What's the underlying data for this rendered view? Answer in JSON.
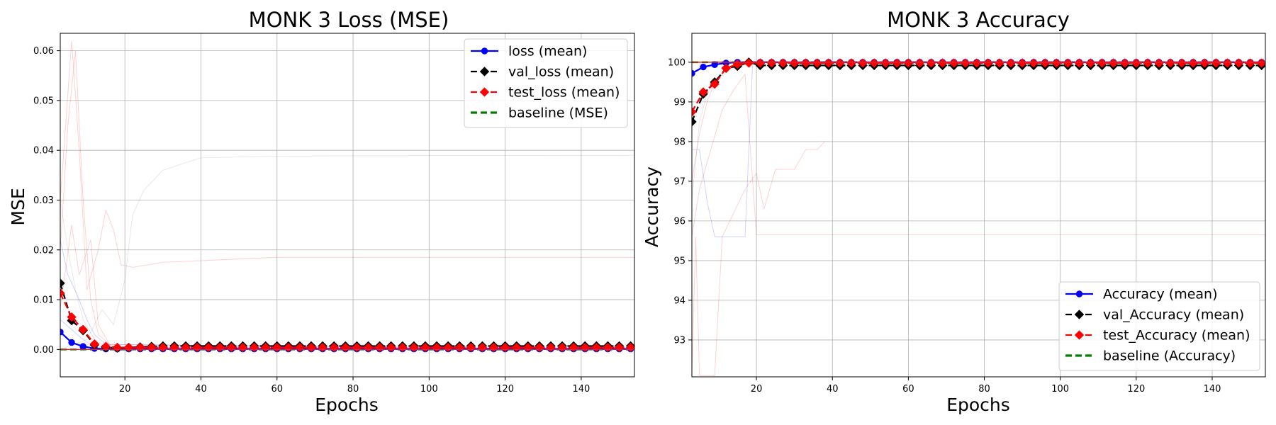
{
  "chart_data": [
    {
      "type": "line",
      "title": "MONK 3 Loss (MSE)",
      "xlabel": "Epochs",
      "ylabel": "MSE",
      "xlim": [
        3,
        154
      ],
      "ylim": [
        -0.0055,
        0.0635
      ],
      "x_ticks": [
        20,
        40,
        60,
        80,
        100,
        120,
        140
      ],
      "x_tick_labels": [
        "20",
        "40",
        "60",
        "80",
        "100",
        "120",
        "140"
      ],
      "y_ticks": [
        0.0,
        0.01,
        0.02,
        0.03,
        0.04,
        0.05,
        0.06
      ],
      "y_tick_labels": [
        "0.00",
        "0.01",
        "0.02",
        "0.03",
        "0.04",
        "0.05",
        "0.06"
      ],
      "grid": true,
      "legend_position": "top-right",
      "series": [
        {
          "name": "loss (mean)",
          "color": "#0000ff",
          "dash": "solid",
          "marker": "circle",
          "x": [
            3,
            6,
            9,
            12,
            15,
            18,
            21,
            24,
            27,
            30,
            40,
            60,
            80,
            100,
            120,
            140,
            154
          ],
          "y": [
            0.0035,
            0.0014,
            0.0006,
            0.0002,
            0.0001,
            0.0001,
            0.0001,
            0.0001,
            0.0001,
            0.0001,
            0.0001,
            0.0001,
            0.0001,
            0.0001,
            0.0001,
            0.0001,
            0.0001
          ]
        },
        {
          "name": "val_loss (mean)",
          "color": "#000000",
          "dash": "dashed",
          "marker": "diamond",
          "x": [
            3,
            6,
            9,
            12,
            15,
            18,
            21,
            24,
            27,
            30,
            40,
            60,
            80,
            100,
            120,
            140,
            154
          ],
          "y": [
            0.0133,
            0.0058,
            0.0038,
            0.0009,
            0.0004,
            0.0003,
            0.0004,
            0.0005,
            0.0006,
            0.0007,
            0.0007,
            0.0007,
            0.0007,
            0.0007,
            0.0007,
            0.0007,
            0.0007
          ]
        },
        {
          "name": "test_loss (mean)",
          "color": "#ff0000",
          "dash": "dashed",
          "marker": "square",
          "x": [
            3,
            6,
            9,
            12,
            15,
            18,
            21,
            24,
            27,
            30,
            40,
            60,
            80,
            100,
            120,
            140,
            154
          ],
          "y": [
            0.0113,
            0.0065,
            0.004,
            0.0011,
            0.0006,
            0.0004,
            0.0004,
            0.0004,
            0.0004,
            0.0004,
            0.0004,
            0.0004,
            0.0004,
            0.0004,
            0.0004,
            0.0004,
            0.0004
          ]
        },
        {
          "name": "baseline (MSE)",
          "color": "#007f00",
          "dash": "dashed",
          "marker": "none",
          "x": [
            3,
            154
          ],
          "y": [
            0.0,
            0.0
          ]
        }
      ],
      "background_runs": [
        {
          "color": "#808080",
          "x": [
            3,
            10,
            14,
            17,
            20,
            22,
            25,
            30,
            40,
            60,
            80,
            154
          ],
          "y": [
            0.0,
            0.002,
            0.008,
            0.005,
            0.014,
            0.027,
            0.032,
            0.036,
            0.0385,
            0.0388,
            0.0389,
            0.039
          ]
        },
        {
          "color": "#ff0000",
          "x": [
            3,
            6,
            8,
            10,
            13,
            15,
            17,
            19,
            22,
            30,
            60,
            154
          ],
          "y": [
            0.03,
            0.062,
            0.04,
            0.012,
            0.02,
            0.028,
            0.024,
            0.017,
            0.0165,
            0.0175,
            0.0185,
            0.0185
          ]
        },
        {
          "color": "#ff0000",
          "x": [
            3,
            5,
            7,
            9,
            11,
            13,
            16,
            20,
            154
          ],
          "y": [
            0.02,
            0.045,
            0.06,
            0.03,
            0.01,
            0.003,
            0.001,
            0.0,
            0.0
          ]
        },
        {
          "color": "#ff0000",
          "x": [
            3,
            6,
            8,
            11,
            13,
            16,
            154
          ],
          "y": [
            0.008,
            0.025,
            0.015,
            0.022,
            0.005,
            0.001,
            0.0
          ]
        },
        {
          "color": "#0000ff",
          "x": [
            3,
            5,
            8,
            10,
            12,
            15,
            154
          ],
          "y": [
            0.022,
            0.015,
            0.01,
            0.006,
            0.003,
            0.001,
            0.0
          ]
        },
        {
          "color": "#0000ff",
          "x": [
            3,
            6,
            9,
            12,
            154
          ],
          "y": [
            0.006,
            0.004,
            0.002,
            0.0005,
            0.0
          ]
        },
        {
          "color": "#808080",
          "x": [
            3,
            5,
            7,
            9,
            12,
            15,
            154
          ],
          "y": [
            0.03,
            0.02,
            0.012,
            0.006,
            0.002,
            0.0005,
            0.0
          ]
        }
      ]
    },
    {
      "type": "line",
      "title": "MONK 3 Accuracy",
      "xlabel": "Epochs",
      "ylabel": "Accuracy",
      "xlim": [
        3,
        154
      ],
      "ylim": [
        92.07,
        100.73
      ],
      "x_ticks": [
        20,
        40,
        60,
        80,
        100,
        120,
        140
      ],
      "x_tick_labels": [
        "20",
        "40",
        "60",
        "80",
        "100",
        "120",
        "140"
      ],
      "y_ticks": [
        93,
        94,
        95,
        96,
        97,
        98,
        99,
        100
      ],
      "y_tick_labels": [
        "93",
        "94",
        "95",
        "96",
        "97",
        "98",
        "99",
        "100"
      ],
      "grid": true,
      "legend_position": "bottom-right",
      "series": [
        {
          "name": "Accuracy (mean)",
          "color": "#0000ff",
          "dash": "solid",
          "marker": "circle",
          "x": [
            3,
            6,
            9,
            12,
            15,
            18,
            21,
            24,
            30,
            40,
            60,
            80,
            100,
            120,
            140,
            154
          ],
          "y": [
            99.72,
            99.88,
            99.94,
            99.98,
            100.0,
            100.0,
            100.0,
            100.0,
            100.0,
            100.0,
            100.0,
            100.0,
            100.0,
            100.0,
            100.0,
            100.0
          ]
        },
        {
          "name": "val_Accuracy (mean)",
          "color": "#000000",
          "dash": "dashed",
          "marker": "diamond",
          "x": [
            3,
            6,
            9,
            12,
            15,
            18,
            21,
            24,
            30,
            40,
            60,
            80,
            100,
            120,
            140,
            154
          ],
          "y": [
            98.5,
            99.2,
            99.5,
            99.85,
            99.9,
            100.0,
            99.92,
            99.92,
            99.92,
            99.92,
            99.92,
            99.92,
            99.92,
            99.92,
            99.92,
            99.92
          ]
        },
        {
          "name": "test_Accuracy (mean)",
          "color": "#ff0000",
          "dash": "dashed",
          "marker": "square",
          "x": [
            3,
            6,
            9,
            12,
            15,
            18,
            21,
            24,
            30,
            40,
            60,
            80,
            100,
            120,
            140,
            154
          ],
          "y": [
            98.75,
            99.25,
            99.45,
            99.85,
            99.95,
            99.98,
            99.98,
            99.98,
            99.98,
            99.98,
            99.98,
            99.98,
            99.98,
            99.98,
            99.98,
            99.98
          ]
        },
        {
          "name": "baseline (Accuracy)",
          "color": "#007f00",
          "dash": "dashed",
          "marker": "none",
          "x": [
            3,
            154
          ],
          "y": [
            100.0,
            100.0
          ]
        }
      ],
      "background_runs": [
        {
          "color": "#ff0000",
          "x": [
            3,
            4,
            5,
            7,
            9,
            11,
            14,
            17,
            20,
            22,
            25,
            30,
            33,
            36,
            38
          ],
          "y": [
            92.1,
            95.6,
            92.1,
            92.1,
            92.1,
            95.6,
            96.2,
            96.8,
            97.2,
            96.3,
            97.3,
            97.3,
            97.8,
            97.8,
            98.0
          ]
        },
        {
          "color": "#ff0000",
          "x": [
            3,
            5,
            8,
            11,
            14,
            17,
            20,
            154
          ],
          "y": [
            95.6,
            96.8,
            97.8,
            98.8,
            99.3,
            99.7,
            95.65,
            95.65
          ]
        },
        {
          "color": "#0000ff",
          "x": [
            3,
            5,
            7,
            9,
            11,
            13,
            15,
            17,
            19,
            154
          ],
          "y": [
            97.8,
            97.8,
            96.5,
            95.6,
            95.6,
            95.6,
            95.6,
            95.6,
            100.0,
            100.0
          ]
        },
        {
          "color": "#808080",
          "x": [
            3,
            5,
            7,
            10,
            13,
            16,
            19,
            154
          ],
          "y": [
            96.5,
            98.5,
            99.2,
            99.6,
            99.8,
            99.9,
            100.0,
            100.0
          ]
        },
        {
          "color": "#ff0000",
          "x": [
            3,
            5,
            7,
            9,
            12,
            15,
            18,
            154
          ],
          "y": [
            97.0,
            98.2,
            99.0,
            99.5,
            99.8,
            99.9,
            100.0,
            100.0
          ]
        }
      ]
    }
  ]
}
